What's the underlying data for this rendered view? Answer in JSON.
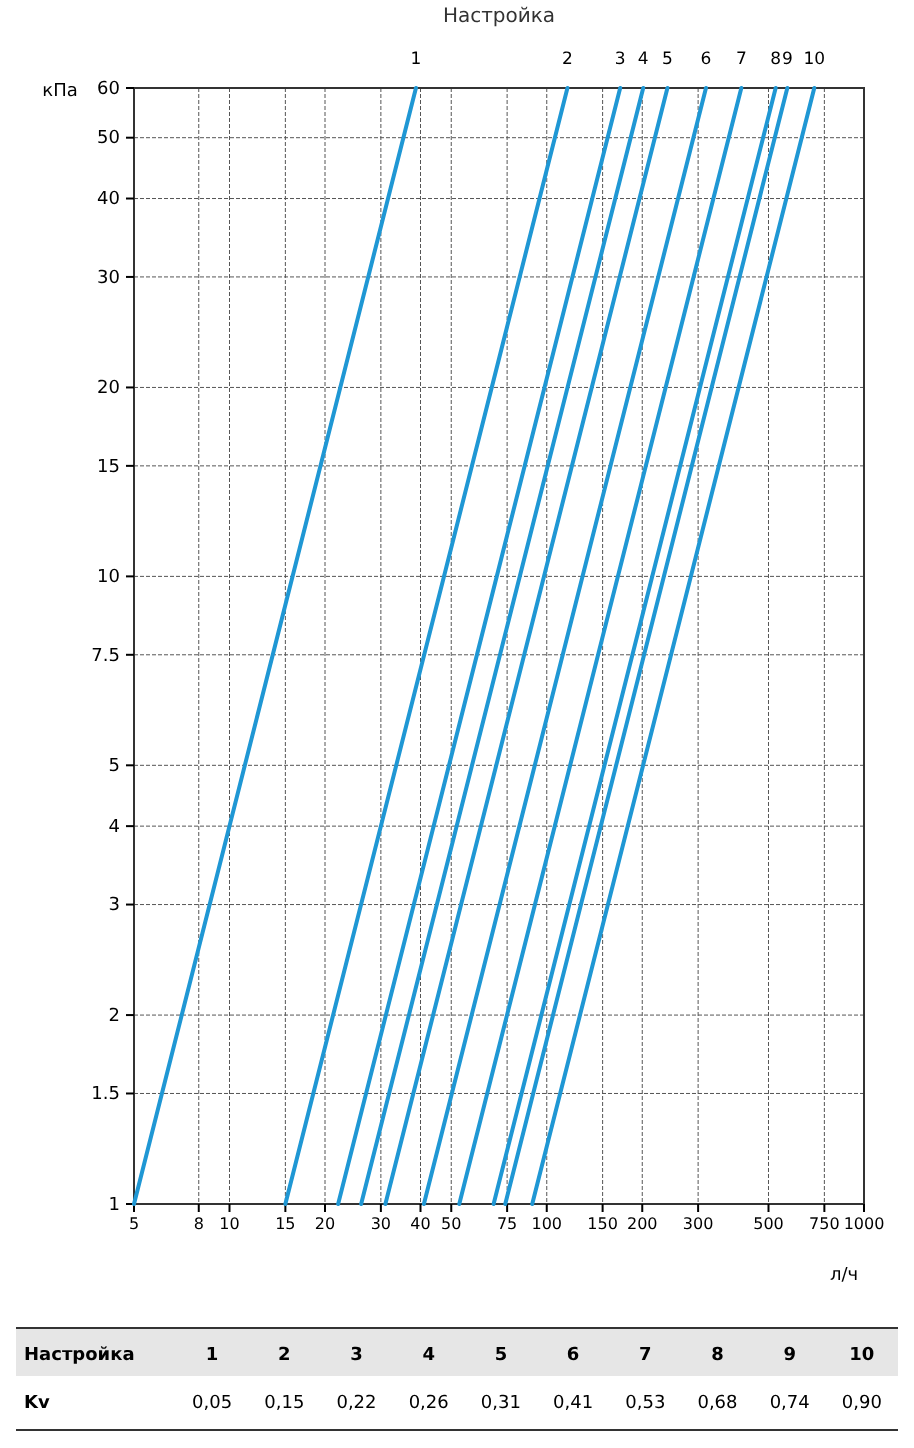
{
  "chart_data": {
    "type": "line",
    "title": "Настройка",
    "xlabel": "л/ч",
    "ylabel": "кПа",
    "log": "xy",
    "grid": true,
    "xlim": [
      5,
      1000
    ],
    "xticks": [
      5,
      8,
      10,
      15,
      20,
      30,
      40,
      50,
      75,
      100,
      150,
      200,
      300,
      500,
      750,
      1000
    ],
    "ylim": [
      1,
      60
    ],
    "yticks": [
      1,
      1.5,
      2,
      3,
      4,
      5,
      7.5,
      10,
      15,
      20,
      30,
      40,
      50,
      60
    ],
    "series": [
      {
        "name": "1",
        "color": "#1f97d4",
        "x": [
          5,
          38.7
        ],
        "values": [
          1,
          60
        ]
      },
      {
        "name": "2",
        "color": "#1f97d4",
        "x": [
          15,
          116.2
        ],
        "values": [
          1,
          60
        ]
      },
      {
        "name": "3",
        "color": "#1f97d4",
        "x": [
          22,
          170.4
        ],
        "values": [
          1,
          60
        ]
      },
      {
        "name": "4",
        "color": "#1f97d4",
        "x": [
          26,
          201.4
        ],
        "values": [
          1,
          60
        ]
      },
      {
        "name": "5",
        "color": "#1f97d4",
        "x": [
          31,
          240.1
        ],
        "values": [
          1,
          60
        ]
      },
      {
        "name": "6",
        "color": "#1f97d4",
        "x": [
          41,
          317.6
        ],
        "values": [
          1,
          60
        ]
      },
      {
        "name": "7",
        "color": "#1f97d4",
        "x": [
          53,
          410.5
        ],
        "values": [
          1,
          60
        ]
      },
      {
        "name": "8",
        "color": "#1f97d4",
        "x": [
          68,
          526.7
        ],
        "values": [
          1,
          60
        ]
      },
      {
        "name": "9",
        "color": "#1f97d4",
        "x": [
          74,
          573.2
        ],
        "values": [
          1,
          60
        ]
      },
      {
        "name": "10",
        "color": "#1f97d4",
        "x": [
          90,
          697.1
        ],
        "values": [
          1,
          60
        ]
      }
    ],
    "annotations": [
      "Настройка",
      "Kv",
      "0,05",
      "0,15",
      "0,22",
      "0,26",
      "0,31",
      "0,41",
      "0,53",
      "0,68",
      "0,74",
      "0,90"
    ]
  }
}
